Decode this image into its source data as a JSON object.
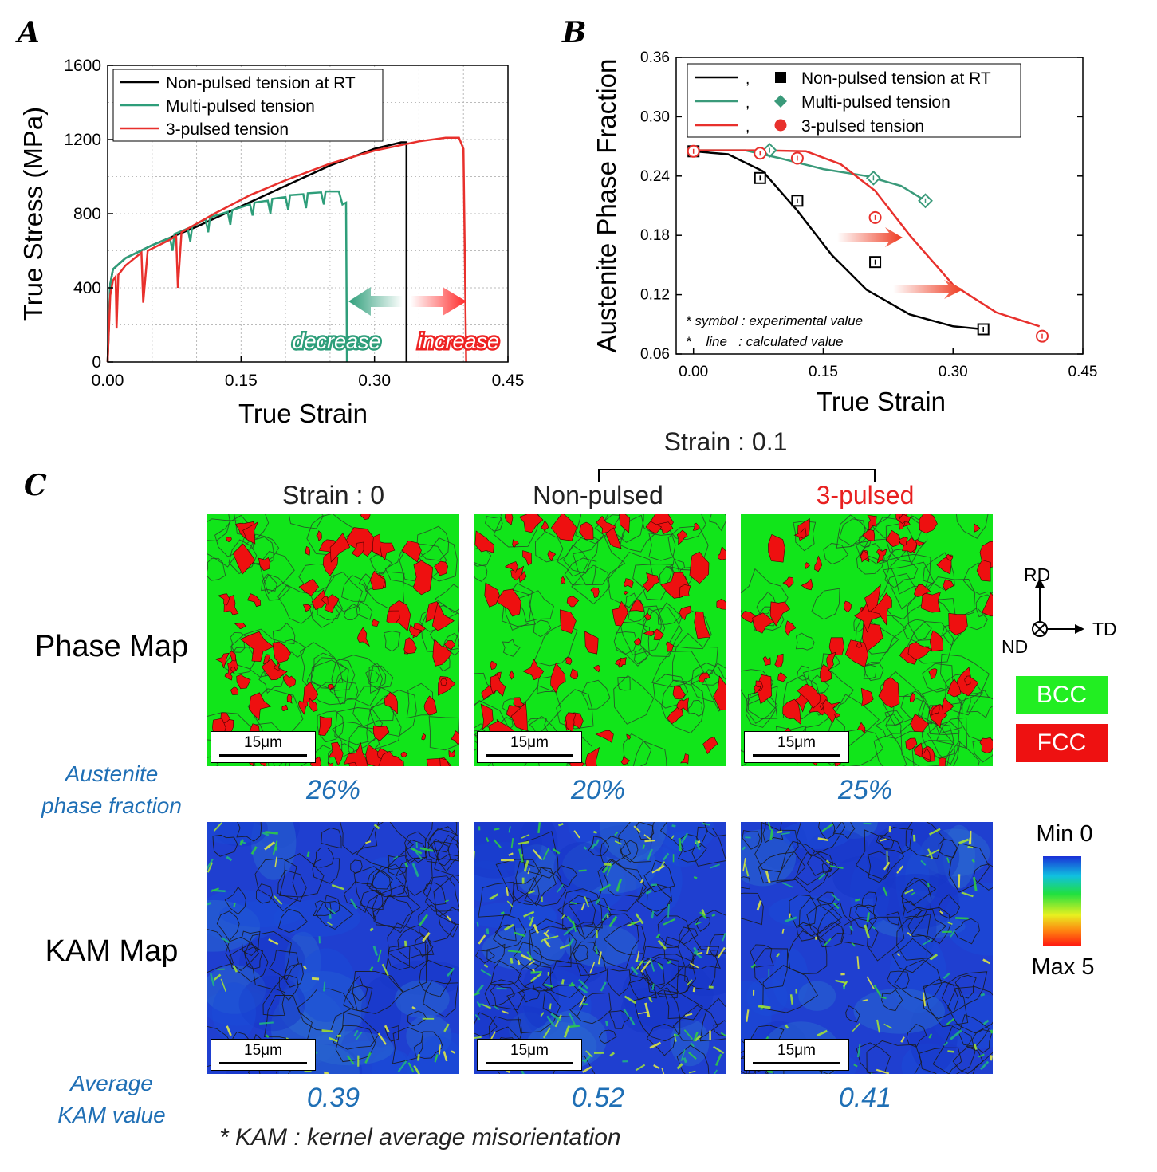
{
  "panels": {
    "a": "A",
    "b": "B",
    "c": "C"
  },
  "chart_data": [
    {
      "type": "line",
      "panel": "A",
      "xlabel": "True Strain",
      "ylabel": "True Stress (MPa)",
      "xlim": [
        0,
        0.45
      ],
      "ylim": [
        0,
        1600
      ],
      "xticks": [
        "0.00",
        "0.15",
        "0.30",
        "0.45"
      ],
      "yticks": [
        "0",
        "400",
        "800",
        "1200",
        "1600"
      ],
      "grid": true,
      "legend_position": "top-left",
      "series": [
        {
          "name": "Non-pulsed tension at RT",
          "color": "#000000",
          "points": [
            [
              0,
              0
            ],
            [
              0.003,
              420
            ],
            [
              0.006,
              500
            ],
            [
              0.02,
              560
            ],
            [
              0.05,
              630
            ],
            [
              0.1,
              730
            ],
            [
              0.15,
              840
            ],
            [
              0.2,
              950
            ],
            [
              0.25,
              1060
            ],
            [
              0.3,
              1150
            ],
            [
              0.33,
              1185
            ],
            [
              0.336,
              1185
            ],
            [
              0.336,
              0
            ]
          ]
        },
        {
          "name": "Multi-pulsed tension",
          "color": "#2e9e7a",
          "points": [
            [
              0,
              0
            ],
            [
              0.003,
              420
            ],
            [
              0.006,
              500
            ],
            [
              0.02,
              560
            ],
            [
              0.05,
              630
            ],
            [
              0.07,
              670
            ],
            [
              0.073,
              600
            ],
            [
              0.075,
              690
            ],
            [
              0.09,
              720
            ],
            [
              0.093,
              650
            ],
            [
              0.095,
              730
            ],
            [
              0.11,
              770
            ],
            [
              0.113,
              700
            ],
            [
              0.115,
              780
            ],
            [
              0.135,
              810
            ],
            [
              0.138,
              740
            ],
            [
              0.14,
              820
            ],
            [
              0.16,
              850
            ],
            [
              0.163,
              790
            ],
            [
              0.165,
              860
            ],
            [
              0.18,
              870
            ],
            [
              0.183,
              800
            ],
            [
              0.185,
              880
            ],
            [
              0.2,
              890
            ],
            [
              0.203,
              820
            ],
            [
              0.205,
              900
            ],
            [
              0.22,
              905
            ],
            [
              0.223,
              830
            ],
            [
              0.225,
              910
            ],
            [
              0.24,
              915
            ],
            [
              0.243,
              850
            ],
            [
              0.245,
              920
            ],
            [
              0.26,
              920
            ],
            [
              0.264,
              850
            ],
            [
              0.268,
              860
            ],
            [
              0.269,
              0
            ]
          ]
        },
        {
          "name": "3-pulsed tension",
          "color": "#e8302c",
          "points": [
            [
              0,
              0
            ],
            [
              0.003,
              360
            ],
            [
              0.006,
              440
            ],
            [
              0.009,
              460
            ],
            [
              0.01,
              180
            ],
            [
              0.012,
              470
            ],
            [
              0.02,
              520
            ],
            [
              0.038,
              590
            ],
            [
              0.04,
              320
            ],
            [
              0.045,
              600
            ],
            [
              0.07,
              660
            ],
            [
              0.077,
              680
            ],
            [
              0.079,
              400
            ],
            [
              0.083,
              700
            ],
            [
              0.12,
              800
            ],
            [
              0.16,
              900
            ],
            [
              0.2,
              980
            ],
            [
              0.25,
              1070
            ],
            [
              0.3,
              1140
            ],
            [
              0.35,
              1190
            ],
            [
              0.38,
              1210
            ],
            [
              0.395,
              1210
            ],
            [
              0.4,
              1150
            ],
            [
              0.403,
              0
            ]
          ]
        }
      ],
      "annotations": [
        "decrease",
        "increase"
      ]
    },
    {
      "type": "scatter",
      "panel": "B",
      "xlabel": "True Strain",
      "ylabel": "Austenite Phase Fraction",
      "xlim": [
        -0.02,
        0.45
      ],
      "ylim": [
        0.06,
        0.36
      ],
      "xticks": [
        "0.00",
        "0.15",
        "0.30",
        "0.45"
      ],
      "yticks": [
        "0.06",
        "0.12",
        "0.18",
        "0.24",
        "0.30",
        "0.36"
      ],
      "legend_position": "top-left",
      "legend_separator": ",",
      "series": [
        {
          "name": "Non-pulsed tension at RT",
          "color": "#000000",
          "marker": "square",
          "x": [
            0.0,
            0.077,
            0.12,
            0.21,
            0.335
          ],
          "y": [
            0.265,
            0.238,
            0.215,
            0.153,
            0.085
          ],
          "curve": [
            [
              0,
              0.265
            ],
            [
              0.04,
              0.262
            ],
            [
              0.08,
              0.245
            ],
            [
              0.12,
              0.205
            ],
            [
              0.16,
              0.16
            ],
            [
              0.2,
              0.125
            ],
            [
              0.25,
              0.1
            ],
            [
              0.3,
              0.088
            ],
            [
              0.335,
              0.085
            ]
          ]
        },
        {
          "name": "Multi-pulsed tension",
          "color": "#3a9a7a",
          "marker": "diamond",
          "x": [
            0.088,
            0.208,
            0.268
          ],
          "y": [
            0.266,
            0.238,
            0.215
          ],
          "curve": [
            [
              0,
              0.266
            ],
            [
              0.06,
              0.266
            ],
            [
              0.1,
              0.258
            ],
            [
              0.15,
              0.247
            ],
            [
              0.2,
              0.24
            ],
            [
              0.24,
              0.23
            ],
            [
              0.268,
              0.215
            ]
          ]
        },
        {
          "name": "3-pulsed tension",
          "color": "#e8302c",
          "marker": "circle",
          "x": [
            0.0,
            0.077,
            0.12,
            0.21,
            0.403
          ],
          "y": [
            0.265,
            0.263,
            0.258,
            0.198,
            0.078
          ],
          "curve": [
            [
              0,
              0.266
            ],
            [
              0.08,
              0.266
            ],
            [
              0.13,
              0.265
            ],
            [
              0.17,
              0.252
            ],
            [
              0.21,
              0.225
            ],
            [
              0.25,
              0.18
            ],
            [
              0.3,
              0.13
            ],
            [
              0.35,
              0.102
            ],
            [
              0.4,
              0.088
            ]
          ]
        }
      ],
      "notes": [
        "* symbol : experimental value",
        "*    line   : calculated value"
      ]
    }
  ],
  "panel_c": {
    "strain_header": "Strain : 0.1",
    "columns": [
      {
        "label": "Strain : 0",
        "color": "#222222",
        "fraction": "26%",
        "kam": "0.39"
      },
      {
        "label": "Non-pulsed",
        "color": "#222222",
        "fraction": "20%",
        "kam": "0.52"
      },
      {
        "label": "3-pulsed",
        "color": "#e82020",
        "fraction": "25%",
        "kam": "0.41"
      }
    ],
    "scale_bar": "15μm",
    "rows": {
      "phase": "Phase Map",
      "kam": "KAM Map"
    },
    "austenite_label_1": "Austenite",
    "austenite_label_2": "phase fraction",
    "kam_label_1": "Average",
    "kam_label_2": "KAM value",
    "axes": {
      "rd": "RD",
      "td": "TD",
      "nd": "ND"
    },
    "phase_legend": [
      {
        "label": "BCC",
        "color": "#22ee22"
      },
      {
        "label": "FCC",
        "color": "#ee1111"
      }
    ],
    "colorbar": {
      "min": "Min 0",
      "max": "Max 5"
    },
    "footnote": "* KAM : kernel average misorientation"
  }
}
